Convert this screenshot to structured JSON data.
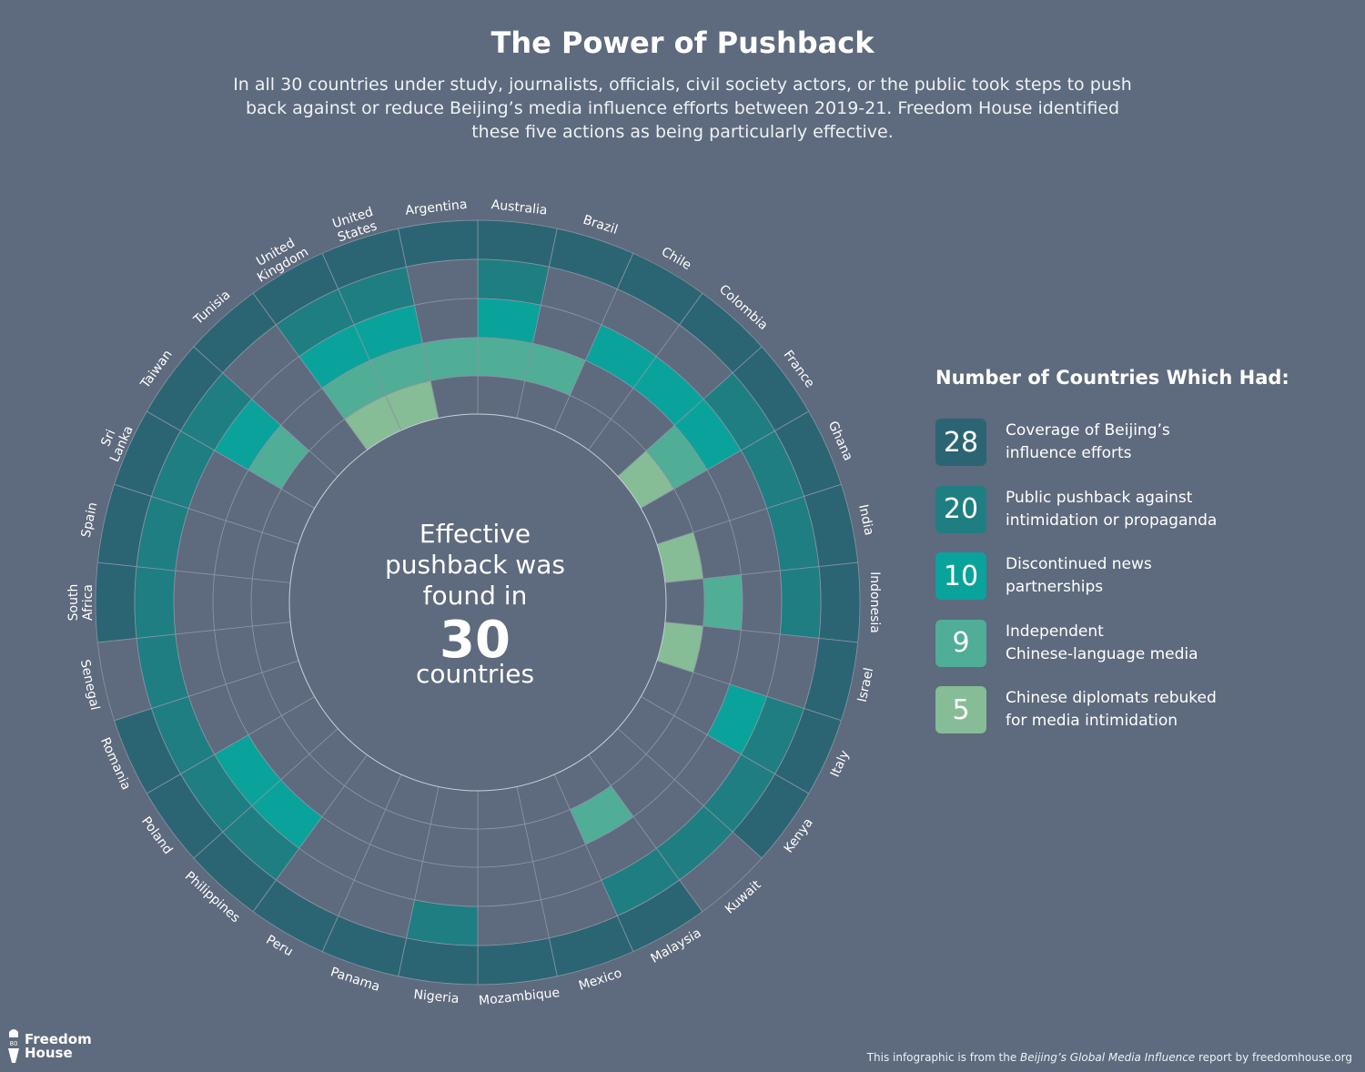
{
  "header": {
    "title": "The Power of Pushback",
    "subtitle": "In all 30 countries under study, journalists, officials, civil society actors, or the public took steps to push back against or reduce Beijing’s media influence efforts between 2019-21. Freedom House identified these five actions as being particularly effective."
  },
  "center": {
    "line1": "Effective",
    "line2": "pushback was",
    "line3": "found in",
    "number": "30",
    "line4": "countries"
  },
  "legend": {
    "title": "Number of Countries Which Had:",
    "items": [
      {
        "count": "28",
        "label": "Coverage of Beijing’s\ninfluence efforts",
        "color": "#2b6573"
      },
      {
        "count": "20",
        "label": "Public pushback against\nintimidation or propaganda",
        "color": "#1f7e82"
      },
      {
        "count": "10",
        "label": "Discontinued news\npartnerships",
        "color": "#0aa39c"
      },
      {
        "count": "9",
        "label": "Independent\nChinese-language media",
        "color": "#50ad96"
      },
      {
        "count": "5",
        "label": "Chinese diplomats rebuked\nfor media intimidation",
        "color": "#86bc96"
      }
    ]
  },
  "chart_data": {
    "type": "radial-grid",
    "categories_order": [
      "Coverage of Beijing’s influence efforts",
      "Public pushback against intimidation or propaganda",
      "Discontinued news partnerships",
      "Independent Chinese-language media",
      "Chinese diplomats rebuked for media intimidation"
    ],
    "countries": [
      {
        "name": "Australia",
        "flags": [
          1,
          1,
          1,
          1,
          0
        ]
      },
      {
        "name": "Brazil",
        "flags": [
          1,
          0,
          0,
          1,
          0
        ]
      },
      {
        "name": "Chile",
        "flags": [
          1,
          0,
          1,
          0,
          0
        ]
      },
      {
        "name": "Colombia",
        "flags": [
          1,
          0,
          1,
          0,
          0
        ]
      },
      {
        "name": "France",
        "flags": [
          1,
          1,
          1,
          1,
          1
        ]
      },
      {
        "name": "Ghana",
        "flags": [
          1,
          1,
          0,
          0,
          0
        ]
      },
      {
        "name": "India",
        "flags": [
          1,
          1,
          0,
          0,
          1
        ]
      },
      {
        "name": "Indonesia",
        "flags": [
          1,
          1,
          0,
          1,
          0
        ]
      },
      {
        "name": "Israel",
        "flags": [
          1,
          0,
          0,
          0,
          1
        ]
      },
      {
        "name": "Italy",
        "flags": [
          1,
          1,
          1,
          0,
          0
        ]
      },
      {
        "name": "Kenya",
        "flags": [
          1,
          1,
          0,
          0,
          0
        ]
      },
      {
        "name": "Kuwait",
        "flags": [
          0,
          1,
          0,
          0,
          0
        ]
      },
      {
        "name": "Malaysia",
        "flags": [
          1,
          1,
          0,
          1,
          0
        ]
      },
      {
        "name": "Mexico",
        "flags": [
          1,
          0,
          0,
          0,
          0
        ]
      },
      {
        "name": "Mozambique",
        "flags": [
          1,
          0,
          0,
          0,
          0
        ]
      },
      {
        "name": "Nigeria",
        "flags": [
          1,
          1,
          0,
          0,
          0
        ]
      },
      {
        "name": "Panama",
        "flags": [
          1,
          0,
          0,
          0,
          0
        ]
      },
      {
        "name": "Peru",
        "flags": [
          1,
          0,
          0,
          0,
          0
        ]
      },
      {
        "name": "Philippines",
        "flags": [
          1,
          1,
          1,
          0,
          0
        ]
      },
      {
        "name": "Poland",
        "flags": [
          1,
          1,
          1,
          0,
          0
        ]
      },
      {
        "name": "Romania",
        "flags": [
          1,
          1,
          0,
          0,
          0
        ]
      },
      {
        "name": "Senegal",
        "flags": [
          0,
          1,
          0,
          0,
          0
        ]
      },
      {
        "name": "South Africa",
        "flags": [
          1,
          1,
          0,
          0,
          0
        ]
      },
      {
        "name": "Spain",
        "flags": [
          1,
          1,
          0,
          0,
          0
        ]
      },
      {
        "name": "Sri Lanka",
        "flags": [
          1,
          1,
          0,
          0,
          0
        ]
      },
      {
        "name": "Taiwan",
        "flags": [
          1,
          1,
          1,
          1,
          0
        ]
      },
      {
        "name": "Tunisia",
        "flags": [
          1,
          0,
          0,
          0,
          0
        ]
      },
      {
        "name": "United Kingdom",
        "flags": [
          1,
          1,
          1,
          1,
          1
        ]
      },
      {
        "name": "United States",
        "flags": [
          1,
          1,
          1,
          1,
          1
        ]
      },
      {
        "name": "Argentina",
        "flags": [
          1,
          0,
          0,
          1,
          0
        ]
      }
    ]
  },
  "footer": {
    "note_prefix": "This infographic is from the ",
    "note_report": "Beijing’s Global Media Influence",
    "note_suffix": " report by freedomhouse.org",
    "logo_text": "Freedom\nHouse",
    "logo_badge": "80"
  }
}
